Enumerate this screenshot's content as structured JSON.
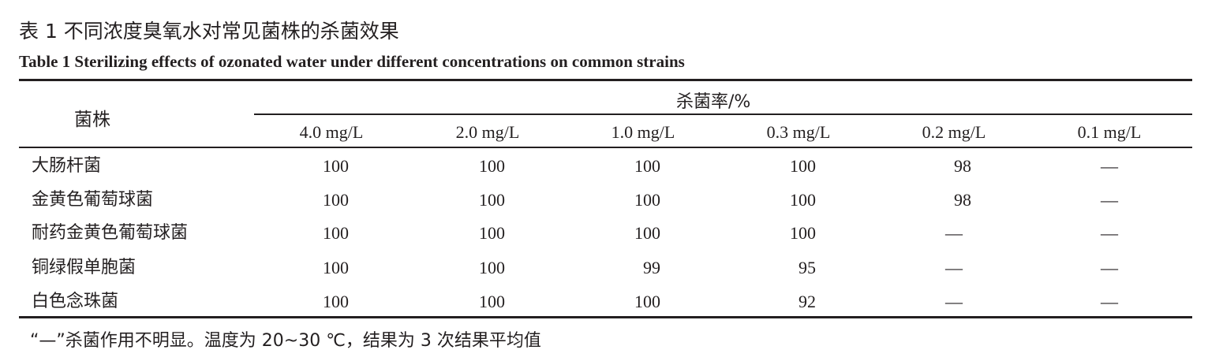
{
  "caption": {
    "cn": "表 1  不同浓度臭氧水对常见菌株的杀菌效果",
    "en": "Table 1   Sterilizing effects of ozonated water under different concentrations on common strains"
  },
  "table": {
    "row_header": "菌株",
    "group_header": "杀菌率/%",
    "columns": [
      "4.0 mg/L",
      "2.0 mg/L",
      "1.0 mg/L",
      "0.3 mg/L",
      "0.2 mg/L",
      "0.1 mg/L"
    ],
    "rows": [
      {
        "strain": "大肠杆菌",
        "values": [
          "100",
          "100",
          "100",
          "100",
          "98",
          "—"
        ]
      },
      {
        "strain": "金黄色葡萄球菌",
        "values": [
          "100",
          "100",
          "100",
          "100",
          "98",
          "—"
        ]
      },
      {
        "strain": "耐药金黄色葡萄球菌",
        "values": [
          "100",
          "100",
          "100",
          "100",
          "—",
          "—"
        ]
      },
      {
        "strain": "铜绿假单胞菌",
        "values": [
          "100",
          "100",
          "99",
          "95",
          "—",
          "—"
        ]
      },
      {
        "strain": "白色念珠菌",
        "values": [
          "100",
          "100",
          "100",
          "92",
          "—",
          "—"
        ]
      }
    ]
  },
  "footnote": "“—”杀菌作用不明显。温度为 20~30 ℃，结果为 3 次结果平均值"
}
